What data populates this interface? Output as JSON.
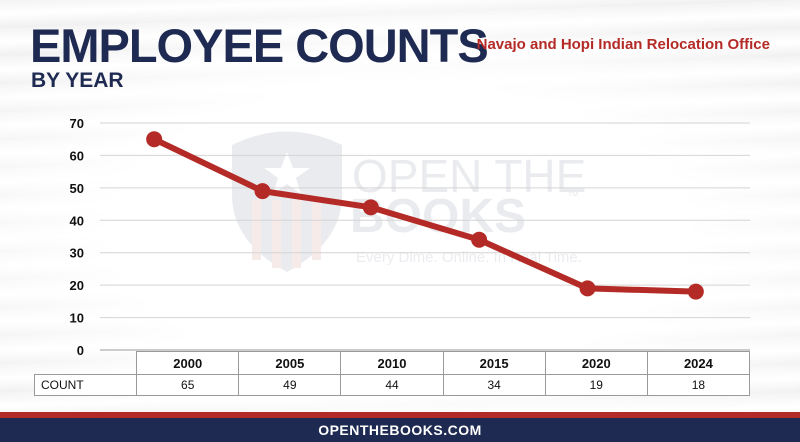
{
  "header": {
    "title": "EMPLOYEE COUNTS",
    "subtitle": "BY YEAR",
    "agency": "Navajo and Hopi Indian Relocation Office"
  },
  "watermark": {
    "line1": "OPEN THE",
    "line2": "BOOKS",
    "tm": "™",
    "tagline": "Every Dime. Online. In Real Time."
  },
  "chart_data": {
    "type": "line",
    "title": "EMPLOYEE COUNTS",
    "subtitle": "BY YEAR",
    "categories": [
      "2000",
      "2005",
      "2010",
      "2015",
      "2020",
      "2024"
    ],
    "series": [
      {
        "name": "COUNT",
        "values": [
          65,
          49,
          44,
          34,
          19,
          18
        ]
      }
    ],
    "ylim": [
      0,
      70
    ],
    "yticks": [
      0,
      10,
      20,
      30,
      40,
      50,
      60,
      70
    ],
    "grid": true,
    "line_color": "#b42a26",
    "table": {
      "row_label": "COUNT"
    }
  },
  "footer": {
    "text": "OPENTHEBOOKS.COM"
  },
  "colors": {
    "navy": "#1e2a52",
    "red": "#b42a26",
    "grid": "#d4d4d4"
  }
}
